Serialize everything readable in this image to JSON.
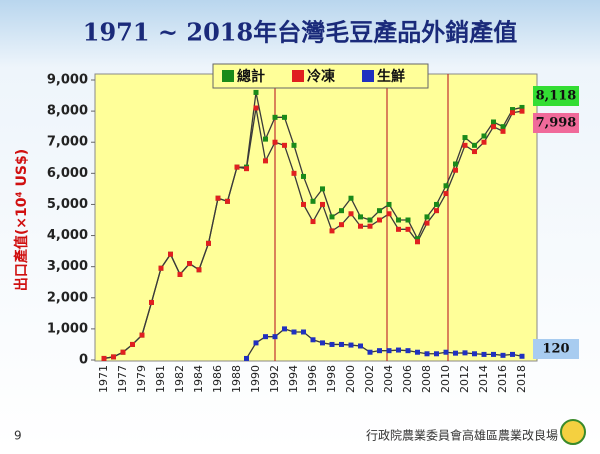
{
  "page_number": "9",
  "footer": "行政院農業委員會高雄區農業改良場",
  "chart_data": {
    "type": "line",
    "title": "1971 ~ 2018年台灣毛豆產品外銷產值",
    "y_label": "出口產值(×10⁴ US$)",
    "categories": [
      "1971",
      null,
      "1977",
      null,
      "1979",
      null,
      "1981",
      null,
      "1982",
      null,
      "1984",
      null,
      "1986",
      null,
      "1988",
      null,
      "1990",
      null,
      "1992",
      null,
      "1994",
      null,
      "1996",
      null,
      "1998",
      null,
      "2000",
      null,
      "2002",
      null,
      "2004",
      null,
      "2006",
      null,
      "2008",
      null,
      "2010",
      null,
      "2012",
      null,
      "2014",
      null,
      "2016",
      null,
      "2018"
    ],
    "ylim": [
      0,
      9000
    ],
    "yticks": [
      0,
      {
        "value": 1000,
        "label": "1,000"
      },
      {
        "value": 2000,
        "label": "2,000"
      },
      {
        "value": 3000,
        "label": "3,000"
      },
      {
        "value": 4000,
        "label": "4,000"
      },
      {
        "value": 5000,
        "label": "5,000"
      },
      {
        "value": 6000,
        "label": "6,000"
      },
      {
        "value": 7000,
        "label": "7,000"
      },
      {
        "value": 8000,
        "label": "8,000"
      },
      {
        "value": 9000,
        "label": "9,000"
      }
    ],
    "legend": "top",
    "series": [
      {
        "name": "總計",
        "color": "#1a8a1a",
        "values": [
          50,
          100,
          250,
          500,
          800,
          1850,
          2950,
          3400,
          2750,
          3100,
          2900,
          3750,
          5200,
          5100,
          6200,
          6200,
          8600,
          7100,
          7800,
          7800,
          6900,
          5900,
          5100,
          5500,
          4600,
          4800,
          5200,
          4600,
          4500,
          4800,
          5000,
          4500,
          4500,
          3900,
          4600,
          5000,
          5600,
          6300,
          7150,
          6900,
          7200,
          7650,
          7500,
          8050,
          8118
        ],
        "value_labels": [
          null,
          null,
          null,
          null,
          null,
          null,
          null,
          null,
          null,
          null,
          null,
          null,
          null,
          null,
          null,
          null,
          null,
          null,
          null,
          null,
          null,
          null,
          null,
          null,
          null,
          null,
          null,
          null,
          null,
          null,
          null,
          null,
          null,
          null,
          null,
          null,
          null,
          null,
          null,
          null,
          null,
          null,
          null,
          null,
          "8,118"
        ],
        "label_color": "#33dd33"
      },
      {
        "name": "冷凍",
        "color": "#e02020",
        "values": [
          50,
          100,
          250,
          500,
          800,
          1850,
          2950,
          3400,
          2750,
          3100,
          2900,
          3750,
          5200,
          5100,
          6200,
          6150,
          8100,
          6400,
          7000,
          6900,
          6000,
          5000,
          4450,
          5000,
          4150,
          4350,
          4700,
          4300,
          4300,
          4500,
          4700,
          4200,
          4200,
          3800,
          4400,
          4800,
          5350,
          6100,
          6900,
          6700,
          7000,
          7500,
          7350,
          7950,
          7998
        ],
        "value_labels": [
          null,
          null,
          null,
          null,
          null,
          null,
          null,
          null,
          null,
          null,
          null,
          null,
          null,
          null,
          null,
          null,
          null,
          null,
          null,
          null,
          null,
          null,
          null,
          null,
          null,
          null,
          null,
          null,
          null,
          null,
          null,
          null,
          null,
          null,
          null,
          null,
          null,
          null,
          null,
          null,
          null,
          null,
          null,
          null,
          "7,998"
        ],
        "label_color": "#f06a9a"
      },
      {
        "name": "生鮮",
        "color": "#2030c0",
        "values": [
          null,
          null,
          null,
          null,
          null,
          null,
          null,
          null,
          null,
          null,
          null,
          null,
          null,
          null,
          null,
          50,
          550,
          750,
          750,
          1000,
          900,
          900,
          650,
          550,
          500,
          500,
          480,
          450,
          250,
          300,
          300,
          320,
          300,
          250,
          200,
          200,
          250,
          220,
          230,
          200,
          180,
          180,
          150,
          180,
          120
        ],
        "value_labels": [
          null,
          null,
          null,
          null,
          null,
          null,
          null,
          null,
          null,
          null,
          null,
          null,
          null,
          null,
          null,
          null,
          null,
          null,
          null,
          null,
          null,
          null,
          null,
          null,
          null,
          null,
          null,
          null,
          null,
          null,
          null,
          null,
          null,
          null,
          null,
          null,
          null,
          null,
          null,
          null,
          null,
          null,
          null,
          null,
          "120"
        ],
        "label_color": "#a8ccf0"
      }
    ]
  }
}
